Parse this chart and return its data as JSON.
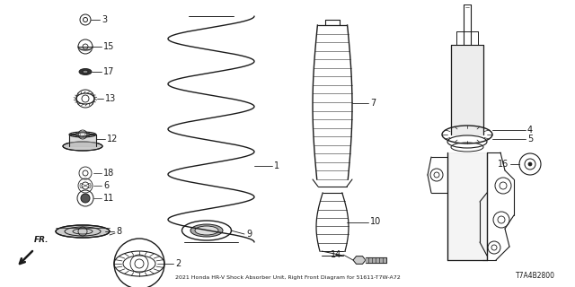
{
  "background_color": "#ffffff",
  "diagram_code": "T7A4B2800",
  "color": "#1a1a1a",
  "figsize": [
    6.4,
    3.2
  ],
  "dpi": 100
}
